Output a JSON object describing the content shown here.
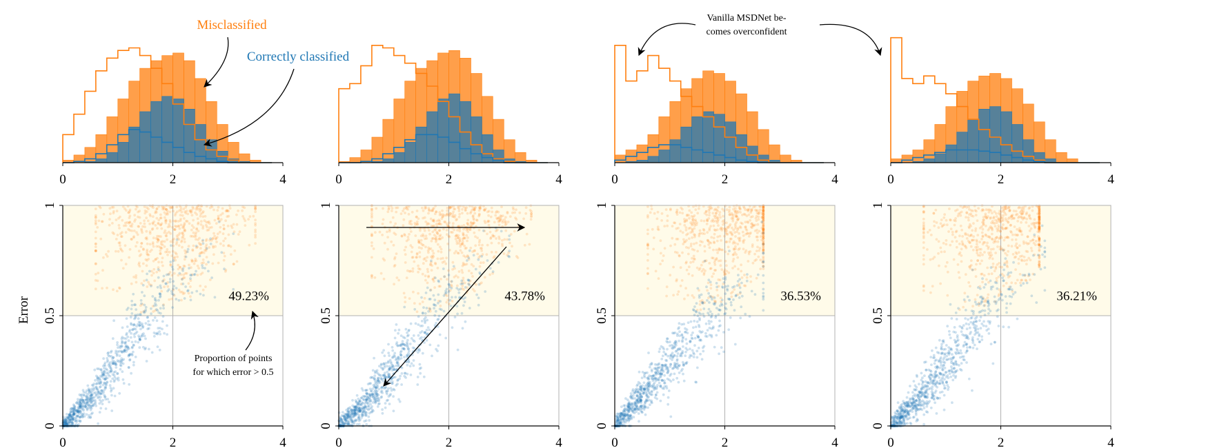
{
  "figure": {
    "colors": {
      "misclassified": "#ff7f0e",
      "correct": "#1f77b4",
      "region_fill": "#fffbe9",
      "grid": "#b0b0b0"
    },
    "annotations": {
      "misclassified_label": "Misclassified",
      "correct_label": "Correctly classified",
      "overconfident_line1": "Vanilla MSDNet be-",
      "overconfident_line2": "comes overconfident",
      "proportion_line1": "Proportion of points",
      "proportion_line2": "for which error > 0.5"
    },
    "y_axis_label": "Error"
  },
  "chart_data": [
    {
      "type": "histogram",
      "panel": 1,
      "xlim": [
        0,
        4
      ],
      "xticks": [
        "0",
        "2",
        "4"
      ],
      "bins": [
        0.0,
        0.2,
        0.4,
        0.6,
        0.8,
        1.0,
        1.2,
        1.4,
        1.6,
        1.8,
        2.0,
        2.2,
        2.4,
        2.6,
        2.8,
        3.0,
        3.2,
        3.4,
        3.6
      ],
      "series": [
        {
          "name": "Misclassified",
          "style": "filled",
          "values": [
            0.02,
            0.06,
            0.12,
            0.22,
            0.36,
            0.5,
            0.64,
            0.74,
            0.8,
            0.84,
            0.86,
            0.8,
            0.66,
            0.48,
            0.3,
            0.16,
            0.07,
            0.02,
            0.0
          ]
        },
        {
          "name": "Correctly classified",
          "style": "filled",
          "values": [
            0.0,
            0.0,
            0.01,
            0.03,
            0.08,
            0.16,
            0.28,
            0.4,
            0.48,
            0.52,
            0.5,
            0.42,
            0.3,
            0.18,
            0.09,
            0.03,
            0.01,
            0.0,
            0.0
          ]
        },
        {
          "name": "",
          "style": "step",
          "color": "misclassified",
          "values": [
            0.22,
            0.38,
            0.56,
            0.72,
            0.82,
            0.88,
            0.9,
            0.84,
            0.74,
            0.62,
            0.46,
            0.3,
            0.18,
            0.1,
            0.05,
            0.02,
            0.0,
            0.0,
            0.0
          ]
        },
        {
          "name": "",
          "style": "step",
          "color": "correct",
          "values": [
            0.0,
            0.01,
            0.03,
            0.07,
            0.14,
            0.22,
            0.26,
            0.24,
            0.2,
            0.16,
            0.12,
            0.08,
            0.05,
            0.03,
            0.01,
            0.0,
            0.0,
            0.0,
            0.0
          ]
        }
      ]
    },
    {
      "type": "histogram",
      "panel": 2,
      "xlim": [
        0,
        4
      ],
      "xticks": [
        "0",
        "2",
        "4"
      ],
      "bins": [
        0.0,
        0.2,
        0.4,
        0.6,
        0.8,
        1.0,
        1.2,
        1.4,
        1.6,
        1.8,
        2.0,
        2.2,
        2.4,
        2.6,
        2.8,
        3.0,
        3.2,
        3.4,
        3.6
      ],
      "series": [
        {
          "name": "Misclassified",
          "style": "filled",
          "values": [
            0.01,
            0.04,
            0.1,
            0.2,
            0.34,
            0.5,
            0.64,
            0.74,
            0.8,
            0.86,
            0.88,
            0.82,
            0.7,
            0.52,
            0.34,
            0.18,
            0.08,
            0.02,
            0.0
          ]
        },
        {
          "name": "Correctly classified",
          "style": "filled",
          "values": [
            0.0,
            0.0,
            0.0,
            0.01,
            0.03,
            0.08,
            0.16,
            0.28,
            0.4,
            0.5,
            0.54,
            0.48,
            0.36,
            0.22,
            0.1,
            0.03,
            0.01,
            0.0,
            0.0
          ]
        },
        {
          "name": "",
          "style": "step",
          "color": "misclassified",
          "values": [
            0.58,
            0.62,
            0.76,
            0.92,
            0.9,
            0.84,
            0.78,
            0.7,
            0.6,
            0.48,
            0.36,
            0.24,
            0.14,
            0.07,
            0.03,
            0.01,
            0.0,
            0.0,
            0.0
          ]
        },
        {
          "name": "",
          "style": "step",
          "color": "correct",
          "values": [
            0.0,
            0.0,
            0.01,
            0.03,
            0.07,
            0.12,
            0.18,
            0.22,
            0.22,
            0.2,
            0.16,
            0.11,
            0.07,
            0.04,
            0.02,
            0.0,
            0.0,
            0.0,
            0.0
          ]
        }
      ]
    },
    {
      "type": "histogram",
      "panel": 3,
      "xlim": [
        0,
        4
      ],
      "xticks": [
        "0",
        "2",
        "4"
      ],
      "bins": [
        0.0,
        0.2,
        0.4,
        0.6,
        0.8,
        1.0,
        1.2,
        1.4,
        1.6,
        1.8,
        2.0,
        2.2,
        2.4,
        2.6,
        2.8,
        3.0,
        3.2,
        3.4,
        3.6
      ],
      "series": [
        {
          "name": "Misclassified",
          "style": "filled",
          "values": [
            0.06,
            0.1,
            0.14,
            0.22,
            0.36,
            0.48,
            0.58,
            0.66,
            0.72,
            0.7,
            0.64,
            0.54,
            0.4,
            0.26,
            0.14,
            0.06,
            0.02,
            0.0,
            0.0
          ]
        },
        {
          "name": "Correctly classified",
          "style": "filled",
          "values": [
            0.0,
            0.01,
            0.02,
            0.05,
            0.1,
            0.18,
            0.28,
            0.36,
            0.4,
            0.38,
            0.32,
            0.22,
            0.13,
            0.06,
            0.02,
            0.0,
            0.0,
            0.0,
            0.0
          ]
        },
        {
          "name": "",
          "style": "step",
          "color": "misclassified",
          "values": [
            0.92,
            0.64,
            0.72,
            0.84,
            0.74,
            0.64,
            0.52,
            0.44,
            0.36,
            0.28,
            0.2,
            0.12,
            0.06,
            0.02,
            0.0,
            0.0,
            0.0,
            0.0,
            0.0
          ]
        },
        {
          "name": "",
          "style": "step",
          "color": "correct",
          "values": [
            0.02,
            0.05,
            0.08,
            0.12,
            0.14,
            0.14,
            0.12,
            0.1,
            0.08,
            0.06,
            0.04,
            0.02,
            0.01,
            0.0,
            0.0,
            0.0,
            0.0,
            0.0,
            0.0
          ]
        }
      ]
    },
    {
      "type": "histogram",
      "panel": 4,
      "xlim": [
        0,
        4
      ],
      "xticks": [
        "0",
        "2",
        "4"
      ],
      "bins": [
        0.0,
        0.2,
        0.4,
        0.6,
        0.8,
        1.0,
        1.2,
        1.4,
        1.6,
        1.8,
        2.0,
        2.2,
        2.4,
        2.6,
        2.8,
        3.0,
        3.2,
        3.4,
        3.6
      ],
      "series": [
        {
          "name": "Misclassified",
          "style": "filled",
          "values": [
            0.03,
            0.06,
            0.1,
            0.18,
            0.3,
            0.44,
            0.56,
            0.64,
            0.68,
            0.7,
            0.66,
            0.58,
            0.46,
            0.32,
            0.18,
            0.08,
            0.03,
            0.0,
            0.0
          ]
        },
        {
          "name": "Correctly classified",
          "style": "filled",
          "values": [
            0.0,
            0.0,
            0.01,
            0.03,
            0.07,
            0.14,
            0.24,
            0.34,
            0.42,
            0.44,
            0.4,
            0.3,
            0.18,
            0.08,
            0.03,
            0.0,
            0.0,
            0.0,
            0.0
          ]
        },
        {
          "name": "",
          "style": "step",
          "color": "misclassified",
          "values": [
            0.98,
            0.66,
            0.62,
            0.68,
            0.62,
            0.54,
            0.44,
            0.34,
            0.26,
            0.2,
            0.14,
            0.09,
            0.05,
            0.02,
            0.0,
            0.0,
            0.0,
            0.0,
            0.0
          ]
        },
        {
          "name": "",
          "style": "step",
          "color": "correct",
          "values": [
            0.0,
            0.02,
            0.04,
            0.06,
            0.08,
            0.1,
            0.1,
            0.1,
            0.09,
            0.08,
            0.06,
            0.04,
            0.02,
            0.01,
            0.0,
            0.0,
            0.0,
            0.0,
            0.0
          ]
        }
      ]
    },
    {
      "type": "scatter",
      "panel": 1,
      "xlim": [
        0,
        4
      ],
      "ylim": [
        0,
        1
      ],
      "xticks": [
        "0",
        "2",
        "4"
      ],
      "yticks": [
        "0",
        "0.5",
        "1"
      ],
      "ylabel": "Error",
      "proportion_label": "49.23%",
      "series": [
        {
          "name": "Misclassified",
          "x": [
            1.0,
            1.5,
            2.0,
            2.5,
            3.0,
            3.5
          ],
          "y_min": [
            0.6,
            0.5,
            0.55,
            0.6,
            0.7,
            0.8
          ],
          "y_max": [
            1.0,
            1.0,
            1.0,
            1.0,
            1.0,
            1.0
          ]
        },
        {
          "name": "Correctly classified",
          "x": [
            0.0,
            0.5,
            1.0,
            1.5,
            2.0,
            2.5,
            3.1
          ],
          "y_center": [
            0.0,
            0.12,
            0.3,
            0.48,
            0.62,
            0.74,
            0.84
          ]
        }
      ]
    },
    {
      "type": "scatter",
      "panel": 2,
      "xlim": [
        0,
        4
      ],
      "ylim": [
        0,
        1
      ],
      "xticks": [
        "0",
        "2",
        "4"
      ],
      "yticks": [
        "0",
        "0.5",
        "1"
      ],
      "proportion_label": "43.78%",
      "series": [
        {
          "name": "Misclassified",
          "x": [
            1.0,
            1.5,
            2.0,
            2.5,
            3.0,
            3.5
          ],
          "y_min": [
            0.6,
            0.5,
            0.55,
            0.6,
            0.7,
            0.8
          ],
          "y_max": [
            1.0,
            1.0,
            1.0,
            1.0,
            1.0,
            1.0
          ]
        },
        {
          "name": "Correctly classified",
          "x": [
            0.0,
            0.5,
            1.0,
            1.5,
            2.0,
            2.5,
            3.1
          ],
          "y_center": [
            0.0,
            0.1,
            0.26,
            0.42,
            0.56,
            0.68,
            0.8
          ]
        }
      ]
    },
    {
      "type": "scatter",
      "panel": 3,
      "xlim": [
        0,
        4
      ],
      "ylim": [
        0,
        1
      ],
      "xticks": [
        "0",
        "2",
        "4"
      ],
      "yticks": [
        "0",
        "0.5",
        "1"
      ],
      "proportion_label": "36.53%",
      "series": [
        {
          "name": "Misclassified",
          "x": [
            0.8,
            1.3,
            1.8,
            2.3,
            2.7
          ],
          "y_min": [
            0.6,
            0.5,
            0.55,
            0.6,
            0.7
          ],
          "y_max": [
            1.0,
            1.0,
            1.0,
            1.0,
            1.0
          ]
        },
        {
          "name": "Correctly classified",
          "x": [
            0.0,
            0.5,
            1.0,
            1.5,
            2.0,
            2.3,
            2.7
          ],
          "y_center": [
            0.0,
            0.14,
            0.28,
            0.44,
            0.56,
            0.62,
            0.7
          ]
        }
      ]
    },
    {
      "type": "scatter",
      "panel": 4,
      "xlim": [
        0,
        4
      ],
      "ylim": [
        0,
        1
      ],
      "xticks": [
        "0",
        "2",
        "4"
      ],
      "yticks": [
        "0",
        "0.5",
        "1"
      ],
      "proportion_label": "36.21%",
      "series": [
        {
          "name": "Misclassified",
          "x": [
            0.8,
            1.3,
            1.8,
            2.3,
            2.7
          ],
          "y_min": [
            0.6,
            0.5,
            0.55,
            0.6,
            0.7
          ],
          "y_max": [
            1.0,
            1.0,
            1.0,
            1.0,
            1.0
          ]
        },
        {
          "name": "Correctly classified",
          "x": [
            0.0,
            0.5,
            1.0,
            1.5,
            2.0,
            2.5,
            2.8
          ],
          "y_center": [
            0.0,
            0.12,
            0.28,
            0.44,
            0.58,
            0.7,
            0.78
          ]
        }
      ]
    }
  ]
}
